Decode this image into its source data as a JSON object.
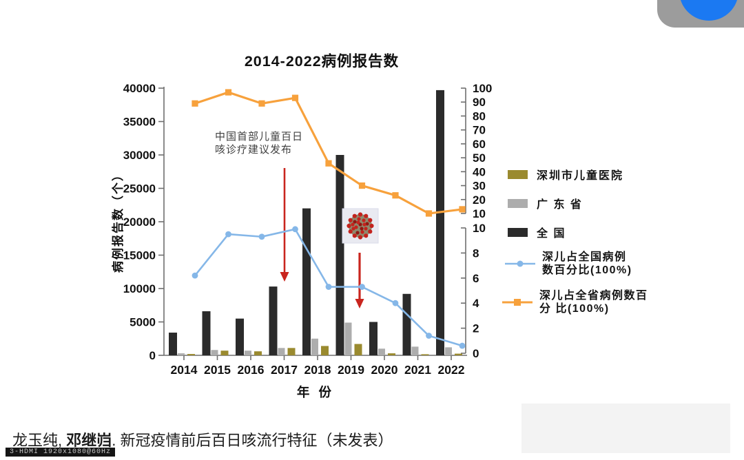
{
  "slide": {
    "title": "2014-2022病例报告数",
    "x_axis_label": "年 份",
    "y_axis_label": "病例报告数（个）",
    "citation": {
      "authors": "龙玉纯, ",
      "author_bold": "邓继岿",
      "rest": ". 新冠疫情前后百日咳流行特征（未发表）"
    },
    "osd_text": "3-HDMI 1920x1080@60Hz"
  },
  "legend": {
    "bar_items": [
      {
        "label": "深圳市儿童医院",
        "color": "#9a8a2f"
      },
      {
        "label": "广 东 省",
        "color": "#adadad"
      },
      {
        "label": "全 国",
        "color": "#2b2b2b"
      }
    ],
    "line_items": [
      {
        "line1": "深儿占全国病例",
        "line2": "数百分比(100%)",
        "color": "#85b7e8",
        "marker": "circle"
      },
      {
        "line1": "深儿占全省病例数百",
        "line2": "分 比(100%)",
        "color": "#f7a13c",
        "marker": "square"
      }
    ]
  },
  "annotation": {
    "guideline_line1": "中国首部儿童百日",
    "guideline_line2": "咳诊疗建议发布",
    "covid_marker": "coronavirus-icon"
  },
  "chart_data": {
    "type": "bar+line combo",
    "title": "2014-2022病例报告数",
    "xlabel": "年 份",
    "ylabel": "病例报告数（个）",
    "categories": [
      "2014",
      "2015",
      "2016",
      "2017",
      "2018",
      "2019",
      "2020",
      "2021",
      "2022"
    ],
    "bar_series": [
      {
        "name": "全 国",
        "color": "#2b2b2b",
        "values": [
          3400,
          6600,
          5500,
          10300,
          22000,
          30000,
          5000,
          9200,
          39700
        ]
      },
      {
        "name": "广 东 省",
        "color": "#adadad",
        "values": [
          300,
          800,
          700,
          1100,
          2500,
          4900,
          1000,
          1300,
          1200
        ]
      },
      {
        "name": "深圳市儿童医院",
        "color": "#9a8a2f",
        "values": [
          200,
          700,
          600,
          1100,
          1400,
          1700,
          300,
          150,
          250
        ]
      }
    ],
    "line_series": [
      {
        "name": "深儿占全国病例数百分比(100%)",
        "color": "#85b7e8",
        "marker": "circle",
        "axis": "right_lower",
        "values": [
          6.2,
          9.5,
          9.3,
          9.9,
          5.3,
          5.3,
          4.0,
          1.4,
          0.6
        ]
      },
      {
        "name": "深儿占全省病例数百分比(100%)",
        "color": "#f7a13c",
        "marker": "square",
        "axis": "right_upper",
        "values": [
          89,
          97,
          89,
          93,
          46,
          30,
          23,
          10,
          13
        ]
      }
    ],
    "axes": {
      "y_left": {
        "label": "病例报告数（个）",
        "min": 0,
        "max": 40000,
        "step": 5000
      },
      "y_right_upper": {
        "min": 10,
        "max": 100,
        "step": 10
      },
      "y_right_lower": {
        "min": 0,
        "max": 10,
        "step": 2
      },
      "x": {
        "label": "年 份"
      }
    },
    "grid": false,
    "legend_position": "right"
  },
  "colors": {
    "arrow_red": "#c9251e",
    "overlay_gray": "#9c9c9c",
    "overlay_blue": "#1b79f2",
    "virus_bg": "#e9eaf1",
    "virus_core": "#8f8a6e",
    "virus_dot": "#c3231d"
  }
}
